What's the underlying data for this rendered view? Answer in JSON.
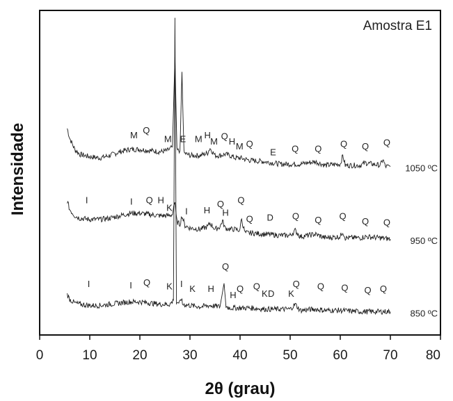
{
  "chart_data": {
    "type": "line",
    "xlabel": "2θ (grau)",
    "ylabel": "Intensidade",
    "sample_label": "Amostra E1",
    "xlim": [
      0,
      80
    ],
    "x_ticks": [
      "0",
      "10",
      "20",
      "30",
      "40",
      "50",
      "60",
      "70",
      "80"
    ],
    "grid": false,
    "series": [
      {
        "name": "1050 ºC",
        "baseline": 7.2,
        "points": [
          [
            5.5,
            8.4
          ],
          [
            6.0,
            8.0
          ],
          [
            7,
            7.55
          ],
          [
            8,
            7.35
          ],
          [
            10,
            7.25
          ],
          [
            12,
            7.2
          ],
          [
            14,
            7.3
          ],
          [
            16,
            7.45
          ],
          [
            18,
            7.55
          ],
          [
            20,
            7.55
          ],
          [
            22,
            7.5
          ],
          [
            24,
            7.45
          ],
          [
            25.5,
            7.5
          ],
          [
            26.5,
            7.65
          ],
          [
            27.0,
            11.3
          ],
          [
            27.4,
            7.5
          ],
          [
            28.0,
            7.5
          ],
          [
            28.4,
            10.7
          ],
          [
            28.8,
            7.4
          ],
          [
            30,
            7.3
          ],
          [
            32,
            7.3
          ],
          [
            33.5,
            7.4
          ],
          [
            34,
            7.6
          ],
          [
            35,
            7.3
          ],
          [
            36,
            7.3
          ],
          [
            37,
            7.35
          ],
          [
            38,
            7.3
          ],
          [
            39,
            7.2
          ],
          [
            40,
            7.2
          ],
          [
            42,
            7.1
          ],
          [
            45,
            7.05
          ],
          [
            48,
            6.95
          ],
          [
            50,
            6.95
          ],
          [
            52,
            6.95
          ],
          [
            55,
            7.05
          ],
          [
            57,
            6.9
          ],
          [
            60,
            6.95
          ],
          [
            60.5,
            7.3
          ],
          [
            61,
            6.9
          ],
          [
            64,
            6.9
          ],
          [
            65,
            7.0
          ],
          [
            68,
            6.9
          ],
          [
            68.5,
            7.15
          ],
          [
            69,
            6.85
          ],
          [
            70,
            6.85
          ]
        ],
        "peaks": [
          [
            "M",
            18.8,
            8.0
          ],
          [
            "Q",
            21.3,
            8.2
          ],
          [
            "M",
            25.6,
            7.85
          ],
          [
            "E",
            28.6,
            7.85
          ],
          [
            "M",
            31.7,
            7.85
          ],
          [
            "H",
            33.5,
            8.0
          ],
          [
            "M",
            34.8,
            7.75
          ],
          [
            "Q",
            36.9,
            7.95
          ],
          [
            "H",
            38.4,
            7.75
          ],
          [
            "M",
            39.9,
            7.55
          ],
          [
            "Q",
            41.9,
            7.65
          ],
          [
            "E",
            46.6,
            7.3
          ],
          [
            "Q",
            51.0,
            7.45
          ],
          [
            "Q",
            55.6,
            7.45
          ],
          [
            "Q",
            60.7,
            7.65
          ],
          [
            "Q",
            65.0,
            7.55
          ],
          [
            "Q",
            69.3,
            7.7
          ]
        ]
      },
      {
        "name": "950 ºC",
        "baseline": 4.2,
        "points": [
          [
            5.5,
            5.45
          ],
          [
            6.0,
            5.1
          ],
          [
            7,
            4.85
          ],
          [
            8,
            4.75
          ],
          [
            10,
            4.7
          ],
          [
            12,
            4.7
          ],
          [
            14,
            4.75
          ],
          [
            16,
            4.85
          ],
          [
            18,
            4.95
          ],
          [
            20,
            4.95
          ],
          [
            22,
            4.9
          ],
          [
            24,
            4.85
          ],
          [
            25.5,
            4.85
          ],
          [
            26.5,
            4.9
          ],
          [
            27.0,
            5.4
          ],
          [
            27.4,
            4.6
          ],
          [
            28.0,
            4.5
          ],
          [
            28.4,
            4.85
          ],
          [
            29,
            4.45
          ],
          [
            30,
            4.35
          ],
          [
            32,
            4.3
          ],
          [
            33.5,
            4.4
          ],
          [
            34,
            4.55
          ],
          [
            35,
            4.3
          ],
          [
            36,
            4.4
          ],
          [
            36.5,
            4.65
          ],
          [
            37,
            4.35
          ],
          [
            38,
            4.3
          ],
          [
            39,
            4.3
          ],
          [
            40,
            4.25
          ],
          [
            40.2,
            4.75
          ],
          [
            41,
            4.15
          ],
          [
            42,
            4.15
          ],
          [
            45,
            4.1
          ],
          [
            48,
            4.05
          ],
          [
            50,
            4.05
          ],
          [
            51,
            4.25
          ],
          [
            52,
            4.0
          ],
          [
            55,
            4.1
          ],
          [
            57,
            3.95
          ],
          [
            60,
            4.0
          ],
          [
            60.5,
            4.2
          ],
          [
            61,
            3.95
          ],
          [
            64,
            3.95
          ],
          [
            65,
            4.0
          ],
          [
            68,
            3.95
          ],
          [
            70,
            3.9
          ]
        ],
        "peaks": [
          [
            "I",
            9.4,
            5.35
          ],
          [
            "I",
            18.3,
            5.3
          ],
          [
            "Q",
            21.9,
            5.35
          ],
          [
            "H",
            24.2,
            5.35
          ],
          [
            "K",
            25.9,
            5.05
          ],
          [
            "I",
            29.3,
            4.9
          ],
          [
            "H",
            33.4,
            4.95
          ],
          [
            "Q",
            36.1,
            5.2
          ],
          [
            "H",
            37.1,
            4.85
          ],
          [
            "Q",
            40.2,
            5.35
          ],
          [
            "Q",
            41.9,
            4.6
          ],
          [
            "D",
            46.0,
            4.65
          ],
          [
            "Q",
            51.1,
            4.7
          ],
          [
            "Q",
            55.6,
            4.55
          ],
          [
            "Q",
            60.5,
            4.7
          ],
          [
            "Q",
            65.0,
            4.5
          ],
          [
            "Q",
            69.3,
            4.45
          ]
        ]
      },
      {
        "name": "850 ºC",
        "baseline": 1.0,
        "points": [
          [
            5.5,
            1.65
          ],
          [
            6.0,
            1.45
          ],
          [
            7,
            1.3
          ],
          [
            8,
            1.25
          ],
          [
            10,
            1.2
          ],
          [
            12,
            1.2
          ],
          [
            14,
            1.25
          ],
          [
            16,
            1.3
          ],
          [
            18,
            1.35
          ],
          [
            20,
            1.35
          ],
          [
            22,
            1.3
          ],
          [
            24,
            1.25
          ],
          [
            26,
            1.25
          ],
          [
            26.7,
            1.4
          ],
          [
            27.0,
            12.9
          ],
          [
            27.3,
            1.35
          ],
          [
            28.0,
            1.3
          ],
          [
            28.3,
            1.5
          ],
          [
            28.5,
            1.25
          ],
          [
            30,
            1.2
          ],
          [
            32,
            1.15
          ],
          [
            34,
            1.2
          ],
          [
            36,
            1.15
          ],
          [
            36.8,
            2.1
          ],
          [
            37.2,
            1.15
          ],
          [
            38,
            1.1
          ],
          [
            40,
            1.1
          ],
          [
            42,
            1.1
          ],
          [
            45,
            1.05
          ],
          [
            48,
            1.05
          ],
          [
            50,
            1.05
          ],
          [
            51,
            1.25
          ],
          [
            52,
            1.0
          ],
          [
            55,
            1.05
          ],
          [
            57,
            1.0
          ],
          [
            60,
            1.0
          ],
          [
            64,
            0.95
          ],
          [
            68,
            0.95
          ],
          [
            70,
            0.95
          ]
        ],
        "peaks": [
          [
            "I",
            9.8,
            1.95
          ],
          [
            "I",
            18.2,
            1.9
          ],
          [
            "Q",
            21.4,
            2.0
          ],
          [
            "K",
            25.9,
            1.85
          ],
          [
            "I",
            28.3,
            1.95
          ],
          [
            "K",
            30.5,
            1.75
          ],
          [
            "H",
            34.2,
            1.75
          ],
          [
            "Q",
            37.1,
            2.65
          ],
          [
            "H",
            38.6,
            1.5
          ],
          [
            "Q",
            40.0,
            1.75
          ],
          [
            "Q",
            43.3,
            1.85
          ],
          [
            "K",
            44.9,
            1.55
          ],
          [
            "D",
            46.2,
            1.55
          ],
          [
            "K",
            50.2,
            1.55
          ],
          [
            "Q",
            51.2,
            1.95
          ],
          [
            "Q",
            56.1,
            1.85
          ],
          [
            "Q",
            60.9,
            1.8
          ],
          [
            "Q",
            65.5,
            1.7
          ],
          [
            "Q",
            68.6,
            1.75
          ]
        ]
      }
    ]
  }
}
